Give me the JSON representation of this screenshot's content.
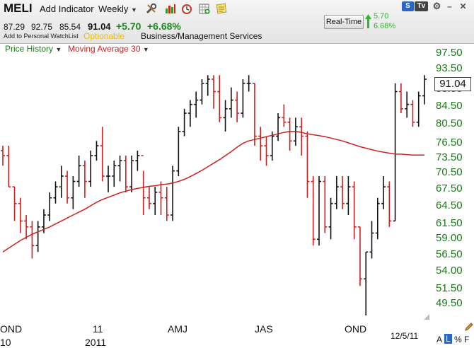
{
  "header": {
    "symbol": "MELI",
    "add_indicator": "Add Indicator",
    "period": "Weekly",
    "open": "87.29",
    "high": "92.75",
    "low": "85.54",
    "close": "91.04",
    "change": "+5.70",
    "change_pct": "+6.68%",
    "watchlist_link": "Add to Personal WatchList",
    "optionable": "Optionable",
    "industry": "Business/Management Services",
    "realtime_button": "Real-Time",
    "realtime_change": "5.70",
    "realtime_pct": "6.68%"
  },
  "window": {
    "s_button": "S",
    "tv_button": "Tv"
  },
  "legend": {
    "price": "Price History",
    "ma": "Moving Average 30"
  },
  "price_tag": "91.04",
  "y_labels": [
    "97.50",
    "93.50",
    "88.50",
    "84.50",
    "80.50",
    "76.50",
    "73.50",
    "70.50",
    "67.50",
    "64.50",
    "61.50",
    "59.00",
    "56.50",
    "54.00",
    "51.50",
    "49.50"
  ],
  "x_labels": [
    {
      "text": "OND"
    },
    {
      "text": "11"
    },
    {
      "text": "AMJ"
    },
    {
      "text": "JAS"
    },
    {
      "text": "OND"
    }
  ],
  "x_labels_row2": [
    {
      "text": "10"
    },
    {
      "text": "2011"
    }
  ],
  "footer": {
    "date": "12/5/11",
    "scale_a": "A",
    "scale_l": "L",
    "scale_pct": "%",
    "scale_f": "F"
  },
  "colors": {
    "up": "#111111",
    "down": "#cc1f1f",
    "ma": "#cc2222",
    "axis_text": "#1a7a1a"
  },
  "chart_data": {
    "type": "bar",
    "title": "",
    "ylim": [
      48,
      99
    ],
    "y_scale": "log",
    "series": [
      {
        "name": "Price History",
        "kind": "ohlc",
        "values": [
          [
            75,
            76,
            72,
            74
          ],
          [
            74,
            76,
            68,
            68
          ],
          [
            68,
            68,
            62,
            65
          ],
          [
            65,
            66,
            60,
            62
          ],
          [
            62,
            63,
            59,
            61
          ],
          [
            61,
            62,
            56,
            58
          ],
          [
            58,
            62,
            57,
            61
          ],
          [
            61,
            64,
            60,
            63
          ],
          [
            63,
            67,
            62,
            66
          ],
          [
            66,
            69,
            65,
            68
          ],
          [
            68,
            72,
            66,
            70
          ],
          [
            70,
            71,
            65,
            66
          ],
          [
            66,
            70,
            64,
            69
          ],
          [
            69,
            74,
            68,
            72
          ],
          [
            72,
            73,
            66,
            69
          ],
          [
            69,
            75,
            68,
            74
          ],
          [
            74,
            77,
            73,
            76
          ],
          [
            76,
            80,
            69,
            70
          ],
          [
            70,
            72,
            67,
            70
          ],
          [
            70,
            73,
            68,
            72
          ],
          [
            72,
            74,
            69,
            73
          ],
          [
            73,
            74,
            67,
            68
          ],
          [
            68,
            74,
            67,
            73
          ],
          [
            73,
            75,
            71,
            74
          ],
          [
            74,
            71,
            63,
            66
          ],
          [
            66,
            68,
            64,
            65
          ],
          [
            65,
            68,
            63,
            67
          ],
          [
            67,
            69,
            63,
            66
          ],
          [
            66,
            68,
            62,
            63
          ],
          [
            63,
            72,
            62,
            71
          ],
          [
            71,
            80,
            70,
            79
          ],
          [
            79,
            84,
            78,
            83
          ],
          [
            83,
            86,
            80,
            85
          ],
          [
            85,
            88,
            82,
            86
          ],
          [
            86,
            91,
            85,
            90
          ],
          [
            90,
            92,
            87,
            91
          ],
          [
            91,
            92,
            84,
            88
          ],
          [
            88,
            92,
            81,
            82
          ],
          [
            82,
            86,
            79,
            84
          ],
          [
            84,
            89,
            82,
            86
          ],
          [
            86,
            88,
            81,
            83
          ],
          [
            83,
            91,
            82,
            90
          ],
          [
            90,
            92,
            88,
            90
          ],
          [
            90,
            90,
            76,
            78
          ],
          [
            78,
            80,
            73,
            76
          ],
          [
            76,
            78,
            72,
            74
          ],
          [
            74,
            79,
            73,
            78
          ],
          [
            78,
            83,
            77,
            82
          ],
          [
            82,
            85,
            80,
            81
          ],
          [
            81,
            82,
            75,
            77
          ],
          [
            77,
            82,
            76,
            80
          ],
          [
            80,
            82,
            74,
            78
          ],
          [
            78,
            79,
            66,
            69
          ],
          [
            69,
            70,
            58,
            59
          ],
          [
            59,
            70,
            58,
            69
          ],
          [
            69,
            70,
            60,
            61
          ],
          [
            61,
            66,
            59,
            65
          ],
          [
            65,
            70,
            64,
            68
          ],
          [
            68,
            70,
            64,
            65
          ],
          [
            65,
            70,
            63,
            68
          ],
          [
            68,
            69,
            59,
            61
          ],
          [
            61,
            61,
            52,
            53
          ],
          [
            53,
            57,
            48,
            57
          ],
          [
            57,
            62,
            56,
            60
          ],
          [
            60,
            66,
            59,
            65
          ],
          [
            65,
            70,
            64,
            68
          ],
          [
            68,
            69,
            61,
            62
          ],
          [
            62,
            90,
            62,
            88
          ],
          [
            88,
            90,
            83,
            84
          ],
          [
            84,
            88,
            82,
            85
          ],
          [
            85,
            86,
            80,
            81
          ],
          [
            81,
            88,
            80,
            87
          ],
          [
            87,
            92,
            85,
            91
          ]
        ]
      },
      {
        "name": "Moving Average 30",
        "kind": "line",
        "values": [
          57,
          57.6,
          58.2,
          58.8,
          59.3,
          59.8,
          60.2,
          60.6,
          61,
          61.5,
          62,
          62.5,
          63,
          63.5,
          64,
          64.6,
          65.2,
          65.7,
          66.1,
          66.5,
          66.9,
          67.2,
          67.5,
          67.7,
          67.9,
          68.1,
          68.2,
          68.4,
          68.5,
          68.7,
          69,
          69.4,
          69.9,
          70.5,
          71.1,
          71.8,
          72.5,
          73.2,
          74,
          74.8,
          75.7,
          76.5,
          77,
          77.3,
          77.6,
          77.9,
          78.2,
          78.5,
          78.8,
          79,
          79,
          78.8,
          78.5,
          78.3,
          78.1,
          77.9,
          77.6,
          77.3,
          77,
          76.6,
          76.2,
          75.8,
          75.5,
          75.2,
          74.9,
          74.7,
          74.5,
          74.3,
          74.3,
          74.2,
          74.1,
          74.1,
          74.1
        ]
      }
    ]
  }
}
